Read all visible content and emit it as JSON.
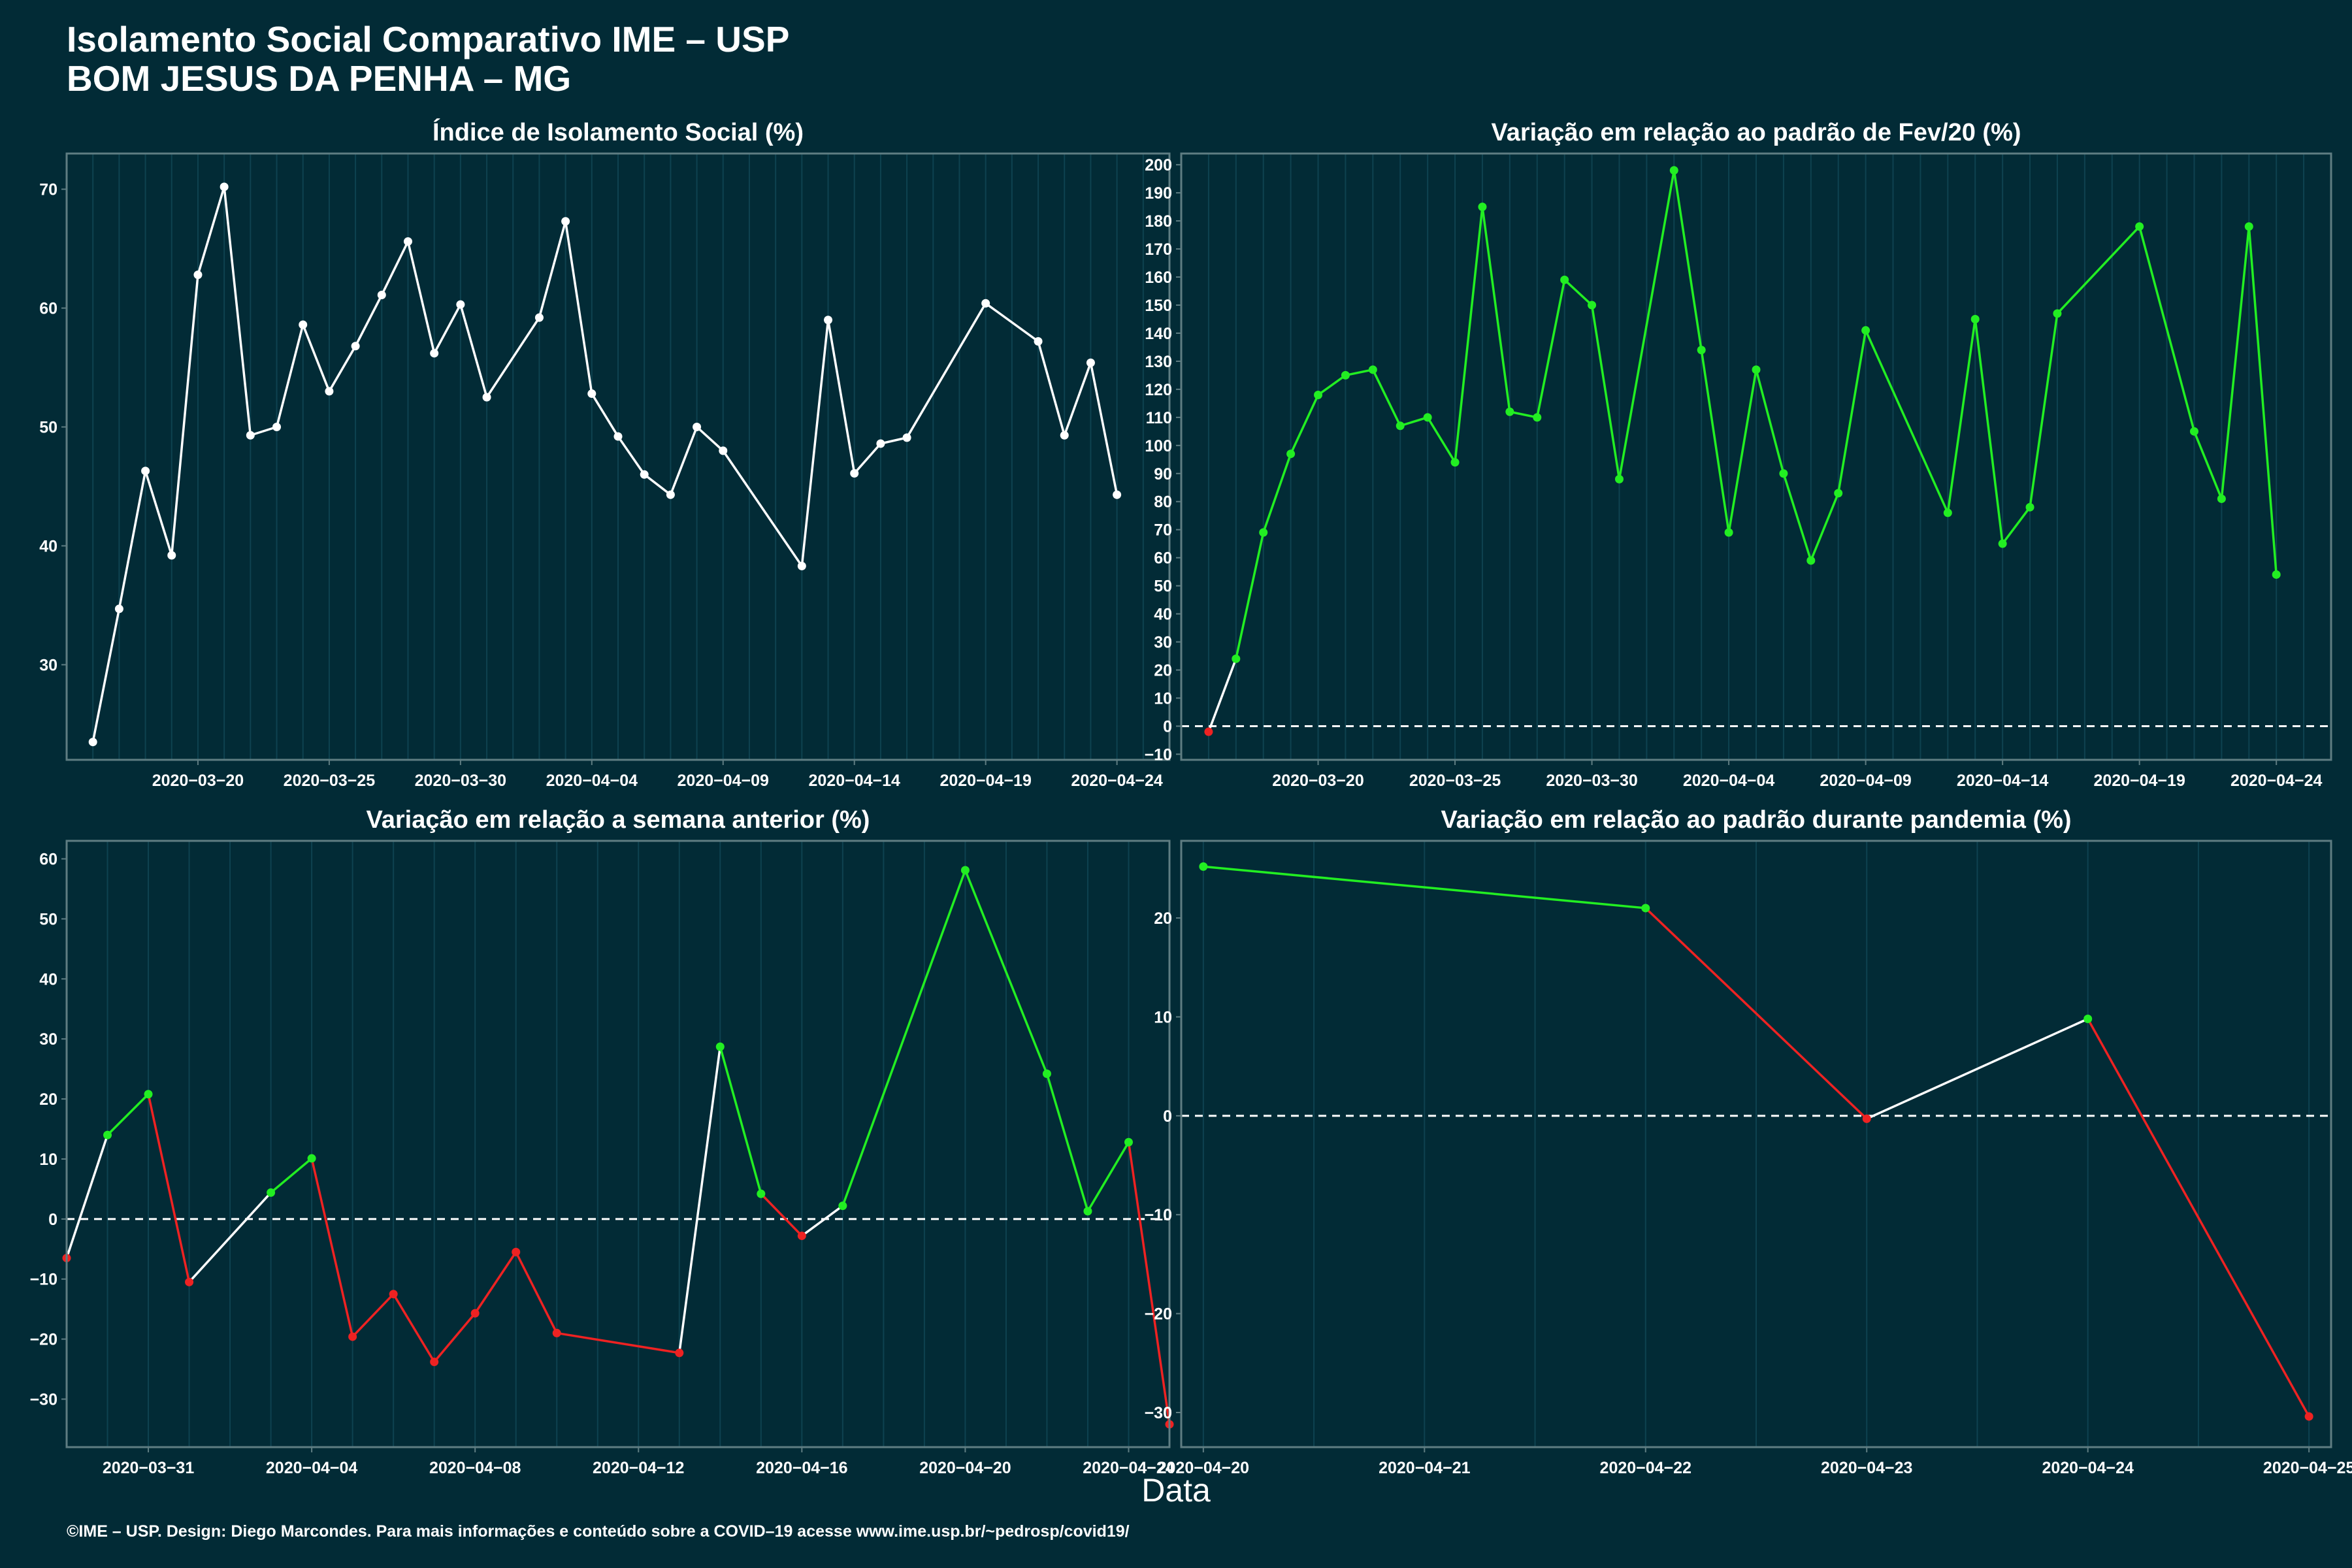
{
  "header": {
    "title": "Isolamento Social Comparativo IME – USP",
    "subtitle": "BOM JESUS DA PENHA – MG"
  },
  "x_axis_label": "Data",
  "footer": "©IME – USP. Design: Diego Marcondes. Para mais informações e conteúdo sobre a COVID–19 acesse www.ime.usp.br/~pedrosp/covid19/",
  "colors": {
    "background": "#022b36",
    "panel_border": "#5f7d82",
    "grid": "#0e4250",
    "white": "#ffffff",
    "green": "#22ee22",
    "red": "#ee2222"
  },
  "chart_data": [
    {
      "type": "line",
      "title": "Índice de Isolamento Social (%)",
      "xlim": [
        "2020-03-15",
        "2020-04-26"
      ],
      "ylim": [
        22,
        73
      ],
      "yticks": [
        30,
        40,
        50,
        60,
        70
      ],
      "xticks": [
        "2020-03-20",
        "2020-03-25",
        "2020-03-30",
        "2020-04-04",
        "2020-04-09",
        "2020-04-14",
        "2020-04-19",
        "2020-04-24"
      ],
      "zero_line": false,
      "points": [
        {
          "x": "2020-03-16",
          "y": 23.5,
          "c": "white"
        },
        {
          "x": "2020-03-17",
          "y": 34.7,
          "c": "white"
        },
        {
          "x": "2020-03-18",
          "y": 46.3,
          "c": "white"
        },
        {
          "x": "2020-03-19",
          "y": 39.2,
          "c": "white"
        },
        {
          "x": "2020-03-20",
          "y": 62.8,
          "c": "white"
        },
        {
          "x": "2020-03-21",
          "y": 70.2,
          "c": "white"
        },
        {
          "x": "2020-03-22",
          "y": 49.3,
          "c": "white"
        },
        {
          "x": "2020-03-23",
          "y": 50.0,
          "c": "white"
        },
        {
          "x": "2020-03-24",
          "y": 58.6,
          "c": "white"
        },
        {
          "x": "2020-03-25",
          "y": 53.0,
          "c": "white"
        },
        {
          "x": "2020-03-26",
          "y": 56.8,
          "c": "white"
        },
        {
          "x": "2020-03-27",
          "y": 61.1,
          "c": "white"
        },
        {
          "x": "2020-03-28",
          "y": 65.6,
          "c": "white"
        },
        {
          "x": "2020-03-29",
          "y": 56.2,
          "c": "white"
        },
        {
          "x": "2020-03-30",
          "y": 60.3,
          "c": "white"
        },
        {
          "x": "2020-03-31",
          "y": 52.5,
          "c": "white"
        },
        {
          "x": "2020-04-02",
          "y": 59.2,
          "c": "white"
        },
        {
          "x": "2020-04-03",
          "y": 67.3,
          "c": "white"
        },
        {
          "x": "2020-04-04",
          "y": 52.8,
          "c": "white"
        },
        {
          "x": "2020-04-05",
          "y": 49.2,
          "c": "white"
        },
        {
          "x": "2020-04-06",
          "y": 46.0,
          "c": "white"
        },
        {
          "x": "2020-04-07",
          "y": 44.3,
          "c": "white"
        },
        {
          "x": "2020-04-08",
          "y": 50.0,
          "c": "white"
        },
        {
          "x": "2020-04-09",
          "y": 48.0,
          "c": "white"
        },
        {
          "x": "2020-04-12",
          "y": 38.3,
          "c": "white"
        },
        {
          "x": "2020-04-13",
          "y": 59.0,
          "c": "white"
        },
        {
          "x": "2020-04-14",
          "y": 46.1,
          "c": "white"
        },
        {
          "x": "2020-04-15",
          "y": 48.6,
          "c": "white"
        },
        {
          "x": "2020-04-16",
          "y": 49.1,
          "c": "white"
        },
        {
          "x": "2020-04-19",
          "y": 60.4,
          "c": "white"
        },
        {
          "x": "2020-04-21",
          "y": 57.2,
          "c": "white"
        },
        {
          "x": "2020-04-22",
          "y": 49.3,
          "c": "white"
        },
        {
          "x": "2020-04-23",
          "y": 55.4,
          "c": "white"
        },
        {
          "x": "2020-04-24",
          "y": 44.3,
          "c": "white"
        }
      ]
    },
    {
      "type": "line",
      "title": "Variação em relação ao padrão de Fev/20 (%)",
      "xlim": [
        "2020-03-15",
        "2020-04-26"
      ],
      "ylim": [
        -12,
        204
      ],
      "yticks": [
        -10,
        0,
        10,
        20,
        30,
        40,
        50,
        60,
        70,
        80,
        90,
        100,
        110,
        120,
        130,
        140,
        150,
        160,
        170,
        180,
        190,
        200
      ],
      "xticks": [
        "2020-03-20",
        "2020-03-25",
        "2020-03-30",
        "2020-04-04",
        "2020-04-09",
        "2020-04-14",
        "2020-04-19",
        "2020-04-24"
      ],
      "zero_line": true,
      "points": [
        {
          "x": "2020-03-16",
          "y": -2,
          "c": "red"
        },
        {
          "x": "2020-03-17",
          "y": 24,
          "c": "green"
        },
        {
          "x": "2020-03-18",
          "y": 69,
          "c": "green"
        },
        {
          "x": "2020-03-19",
          "y": 97,
          "c": "green"
        },
        {
          "x": "2020-03-20",
          "y": 118,
          "c": "green"
        },
        {
          "x": "2020-03-21",
          "y": 125,
          "c": "green"
        },
        {
          "x": "2020-03-22",
          "y": 127,
          "c": "green"
        },
        {
          "x": "2020-03-23",
          "y": 107,
          "c": "green"
        },
        {
          "x": "2020-03-24",
          "y": 110,
          "c": "green"
        },
        {
          "x": "2020-03-25",
          "y": 94,
          "c": "green"
        },
        {
          "x": "2020-03-26",
          "y": 185,
          "c": "green"
        },
        {
          "x": "2020-03-27",
          "y": 112,
          "c": "green"
        },
        {
          "x": "2020-03-28",
          "y": 110,
          "c": "green"
        },
        {
          "x": "2020-03-29",
          "y": 159,
          "c": "green"
        },
        {
          "x": "2020-03-30",
          "y": 150,
          "c": "green"
        },
        {
          "x": "2020-03-31",
          "y": 88,
          "c": "green"
        },
        {
          "x": "2020-04-02",
          "y": 198,
          "c": "green"
        },
        {
          "x": "2020-04-03",
          "y": 134,
          "c": "green"
        },
        {
          "x": "2020-04-04",
          "y": 69,
          "c": "green"
        },
        {
          "x": "2020-04-05",
          "y": 127,
          "c": "green"
        },
        {
          "x": "2020-04-06",
          "y": 90,
          "c": "green"
        },
        {
          "x": "2020-04-07",
          "y": 59,
          "c": "green"
        },
        {
          "x": "2020-04-08",
          "y": 83,
          "c": "green"
        },
        {
          "x": "2020-04-09",
          "y": 141,
          "c": "green"
        },
        {
          "x": "2020-04-12",
          "y": 76,
          "c": "green"
        },
        {
          "x": "2020-04-13",
          "y": 145,
          "c": "green"
        },
        {
          "x": "2020-04-14",
          "y": 65,
          "c": "green"
        },
        {
          "x": "2020-04-15",
          "y": 78,
          "c": "green"
        },
        {
          "x": "2020-04-16",
          "y": 147,
          "c": "green"
        },
        {
          "x": "2020-04-19",
          "y": 178,
          "c": "green"
        },
        {
          "x": "2020-04-21",
          "y": 105,
          "c": "green"
        },
        {
          "x": "2020-04-22",
          "y": 81,
          "c": "green"
        },
        {
          "x": "2020-04-23",
          "y": 178,
          "c": "green"
        },
        {
          "x": "2020-04-24",
          "y": 54,
          "c": "green"
        }
      ]
    },
    {
      "type": "line",
      "title": "Variação em relação a semana anterior (%)",
      "xlim": [
        "2020-03-29",
        "2020-04-25"
      ],
      "ylim": [
        -38,
        63
      ],
      "yticks": [
        -30,
        -20,
        -10,
        0,
        10,
        20,
        30,
        40,
        50,
        60
      ],
      "xticks": [
        "2020-03-31",
        "2020-04-04",
        "2020-04-08",
        "2020-04-12",
        "2020-04-16",
        "2020-04-20",
        "2020-04-24"
      ],
      "zero_line": true,
      "points": [
        {
          "x": "2020-03-29",
          "y": -6.5,
          "c": "red"
        },
        {
          "x": "2020-03-30",
          "y": 14,
          "c": "green"
        },
        {
          "x": "2020-03-31",
          "y": 20.8,
          "c": "green"
        },
        {
          "x": "2020-04-01",
          "y": -10.5,
          "c": "red"
        },
        {
          "x": "2020-04-03",
          "y": 4.4,
          "c": "green"
        },
        {
          "x": "2020-04-04",
          "y": 10.1,
          "c": "green"
        },
        {
          "x": "2020-04-05",
          "y": -19.6,
          "c": "red"
        },
        {
          "x": "2020-04-06",
          "y": -12.5,
          "c": "red"
        },
        {
          "x": "2020-04-07",
          "y": -23.8,
          "c": "red"
        },
        {
          "x": "2020-04-08",
          "y": -15.7,
          "c": "red"
        },
        {
          "x": "2020-04-09",
          "y": -5.5,
          "c": "red"
        },
        {
          "x": "2020-04-10",
          "y": -19,
          "c": "red"
        },
        {
          "x": "2020-04-13",
          "y": -22.3,
          "c": "red"
        },
        {
          "x": "2020-04-14",
          "y": 28.7,
          "c": "green"
        },
        {
          "x": "2020-04-15",
          "y": 4.2,
          "c": "green"
        },
        {
          "x": "2020-04-16",
          "y": -2.8,
          "c": "red"
        },
        {
          "x": "2020-04-17",
          "y": 2.2,
          "c": "green"
        },
        {
          "x": "2020-04-20",
          "y": 58.1,
          "c": "green"
        },
        {
          "x": "2020-04-22",
          "y": 24.2,
          "c": "green"
        },
        {
          "x": "2020-04-23",
          "y": 1.3,
          "c": "green"
        },
        {
          "x": "2020-04-24",
          "y": 12.8,
          "c": "green"
        },
        {
          "x": "2020-04-25",
          "y": -34.2,
          "c": "red"
        }
      ]
    },
    {
      "type": "line",
      "title": "Variação em relação ao padrão durante pandemia (%)",
      "xlim": [
        "2020-04-19 21:36",
        "2020-04-25 02:24"
      ],
      "ylim": [
        -33.5,
        27.8
      ],
      "yticks": [
        -30,
        -20,
        -10,
        0,
        10,
        20
      ],
      "xticks": [
        "2020-04-20",
        "2020-04-21",
        "2020-04-22",
        "2020-04-23",
        "2020-04-24",
        "2020-04-25"
      ],
      "zero_line": true,
      "points": [
        {
          "x": "2020-04-20",
          "y": 25.2,
          "c": "green"
        },
        {
          "x": "2020-04-22",
          "y": 21.0,
          "c": "green"
        },
        {
          "x": "2020-04-23",
          "y": -0.3,
          "c": "red"
        },
        {
          "x": "2020-04-24",
          "y": 9.8,
          "c": "green"
        },
        {
          "x": "2020-04-25",
          "y": -30.4,
          "c": "red"
        }
      ]
    }
  ]
}
